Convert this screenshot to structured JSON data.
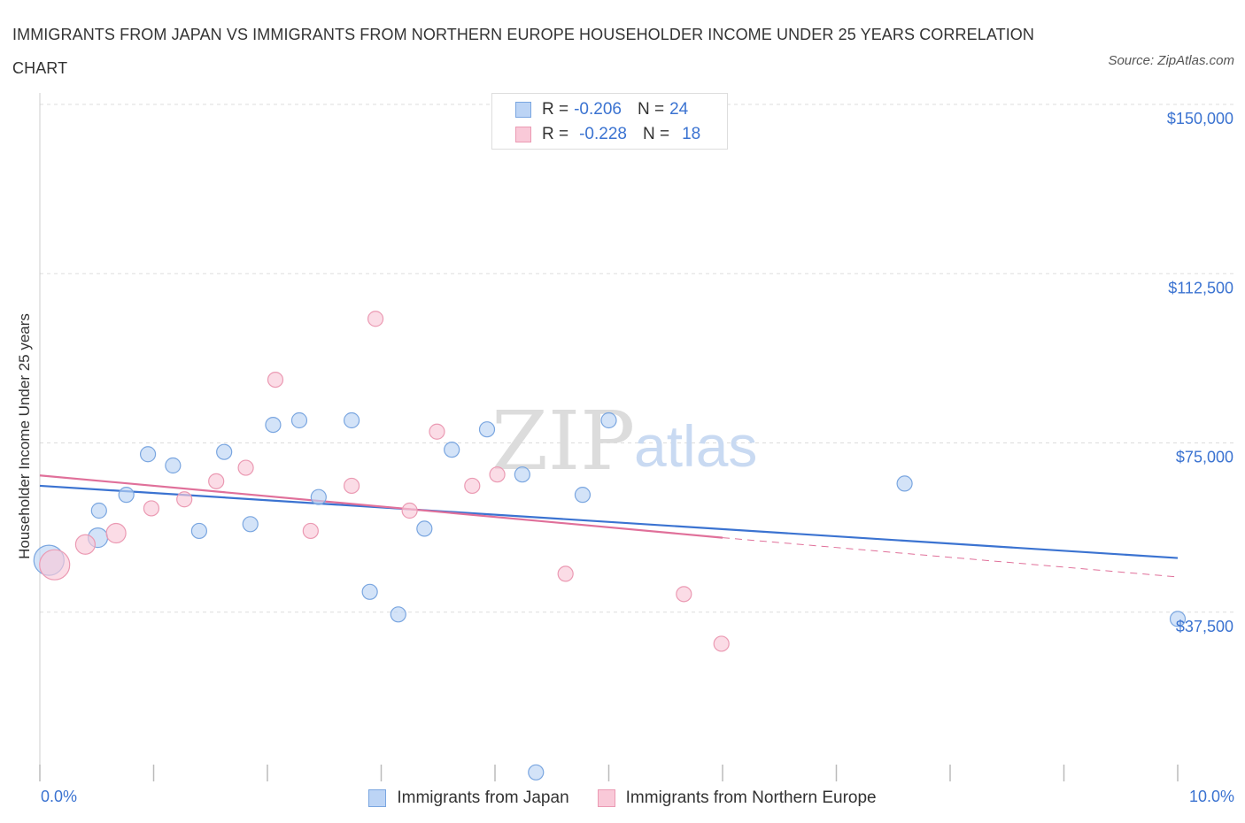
{
  "title": "IMMIGRANTS FROM JAPAN VS IMMIGRANTS FROM NORTHERN EUROPE HOUSEHOLDER INCOME UNDER 25 YEARS CORRELATION CHART",
  "source": "Source: ZipAtlas.com",
  "watermark": {
    "zip": "ZIP",
    "atlas": "atlas"
  },
  "legend_top": [
    {
      "r_label": "R =",
      "r_value": "-0.206",
      "n_label": "N =",
      "n_value": "24"
    },
    {
      "r_label": "R =",
      "r_value": "-0.228",
      "n_label": "N =",
      "n_value": "18"
    }
  ],
  "colors": {
    "japan_fill": "#bcd4f5",
    "japan_stroke": "#7aa6e0",
    "japan_line": "#3b73d1",
    "europe_fill": "#f9c9d8",
    "europe_stroke": "#eb9ab3",
    "europe_line": "#e0709a",
    "axis_text": "#3b73d1",
    "grid": "#dddddd"
  },
  "chart_data": {
    "type": "scatter",
    "title": "IMMIGRANTS FROM JAPAN VS IMMIGRANTS FROM NORTHERN EUROPE HOUSEHOLDER INCOME UNDER 25 YEARS CORRELATION CHART",
    "xlabel": "",
    "ylabel": "Householder Income Under 25 years",
    "xlim": [
      0,
      10
    ],
    "ylim": [
      0,
      150000
    ],
    "x_tick_labels": [
      "0.0%",
      "10.0%"
    ],
    "y_ticks": [
      37500,
      75000,
      112500,
      150000
    ],
    "y_tick_labels": [
      "$37,500",
      "$75,000",
      "$112,500",
      "$150,000"
    ],
    "series": [
      {
        "name": "Immigrants from Japan",
        "r": -0.206,
        "n": 24,
        "points": [
          {
            "x": 0.08,
            "y": 49000,
            "s": 3
          },
          {
            "x": 0.51,
            "y": 54000,
            "s": 2
          },
          {
            "x": 0.52,
            "y": 60000,
            "s": 1
          },
          {
            "x": 0.76,
            "y": 63500,
            "s": 1
          },
          {
            "x": 0.95,
            "y": 72500,
            "s": 1
          },
          {
            "x": 1.17,
            "y": 70000,
            "s": 1
          },
          {
            "x": 1.4,
            "y": 55500,
            "s": 1
          },
          {
            "x": 1.62,
            "y": 73000,
            "s": 1
          },
          {
            "x": 1.85,
            "y": 57000,
            "s": 1
          },
          {
            "x": 2.05,
            "y": 79000,
            "s": 1
          },
          {
            "x": 2.28,
            "y": 80000,
            "s": 1
          },
          {
            "x": 2.45,
            "y": 63000,
            "s": 1
          },
          {
            "x": 2.74,
            "y": 80000,
            "s": 1
          },
          {
            "x": 2.9,
            "y": 42000,
            "s": 1
          },
          {
            "x": 3.15,
            "y": 37000,
            "s": 1
          },
          {
            "x": 3.38,
            "y": 56000,
            "s": 1
          },
          {
            "x": 3.62,
            "y": 73500,
            "s": 1
          },
          {
            "x": 3.93,
            "y": 78000,
            "s": 1
          },
          {
            "x": 4.24,
            "y": 68000,
            "s": 1
          },
          {
            "x": 4.36,
            "y": 2000,
            "s": 1
          },
          {
            "x": 4.77,
            "y": 63500,
            "s": 1
          },
          {
            "x": 5.0,
            "y": 80000,
            "s": 1
          },
          {
            "x": 7.6,
            "y": 66000,
            "s": 1
          },
          {
            "x": 10.0,
            "y": 36000,
            "s": 1
          }
        ],
        "trend": {
          "x": [
            0,
            10
          ],
          "y": [
            65500,
            49500
          ]
        }
      },
      {
        "name": "Immigrants from Northern Europe",
        "r": -0.228,
        "n": 18,
        "points": [
          {
            "x": 0.13,
            "y": 48000,
            "s": 3
          },
          {
            "x": 0.4,
            "y": 52500,
            "s": 2
          },
          {
            "x": 0.67,
            "y": 55000,
            "s": 2
          },
          {
            "x": 0.98,
            "y": 60500,
            "s": 1
          },
          {
            "x": 1.27,
            "y": 62500,
            "s": 1
          },
          {
            "x": 1.55,
            "y": 66500,
            "s": 1
          },
          {
            "x": 1.81,
            "y": 69500,
            "s": 1
          },
          {
            "x": 2.07,
            "y": 89000,
            "s": 1
          },
          {
            "x": 2.38,
            "y": 55500,
            "s": 1
          },
          {
            "x": 2.74,
            "y": 65500,
            "s": 1
          },
          {
            "x": 2.95,
            "y": 102500,
            "s": 1
          },
          {
            "x": 3.25,
            "y": 60000,
            "s": 1
          },
          {
            "x": 3.49,
            "y": 77500,
            "s": 1
          },
          {
            "x": 3.8,
            "y": 65500,
            "s": 1
          },
          {
            "x": 4.02,
            "y": 68000,
            "s": 1
          },
          {
            "x": 4.62,
            "y": 46000,
            "s": 1
          },
          {
            "x": 5.66,
            "y": 41500,
            "s": 1
          },
          {
            "x": 5.99,
            "y": 30500,
            "s": 1
          }
        ],
        "trend": {
          "x": [
            0,
            6
          ],
          "y": [
            67800,
            54000
          ]
        },
        "trend_extension": {
          "x": [
            6,
            10
          ],
          "y": [
            54000,
            45300
          ]
        }
      }
    ]
  },
  "legend_bottom": [
    "Immigrants from Japan",
    "Immigrants from Northern Europe"
  ],
  "x_axis": {
    "left_label": "0.0%",
    "right_label": "10.0%"
  }
}
